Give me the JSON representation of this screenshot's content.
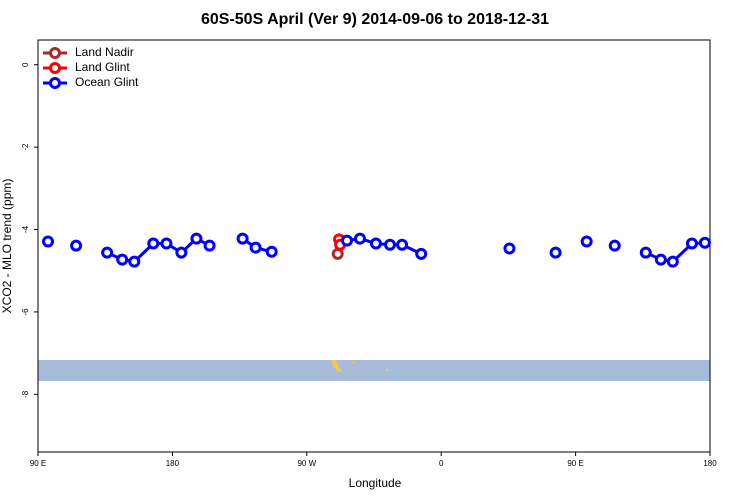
{
  "chart_data": {
    "type": "line",
    "title": "60S-50S April (Ver 9)   2014-09-06 to 2018-12-31",
    "x_label": "Longitude",
    "y_label": "XCO2 - MLO trend (ppm)",
    "xlim": [
      90,
      540
    ],
    "xticks": [
      {
        "value": 90,
        "label": "90 E"
      },
      {
        "value": 180,
        "label": "180"
      },
      {
        "value": 270,
        "label": "90 W"
      },
      {
        "value": 360,
        "label": "0"
      },
      {
        "value": 450,
        "label": "90 E"
      },
      {
        "value": 540,
        "label": "180"
      }
    ],
    "ylim": [
      -9.4,
      0.6
    ],
    "yticks": [
      0,
      -2,
      -4,
      -6,
      -8
    ],
    "legend": "top-left",
    "series": [
      {
        "name": "Land Nadir",
        "color": "#a52a2a",
        "x": [
          290.7
        ],
        "values": [
          -4.59
        ]
      },
      {
        "name": "Land Glint",
        "color": "#ff0000",
        "x": [
          291.6,
          292.3
        ],
        "values": [
          -4.24,
          -4.37
        ]
      },
      {
        "name": "Ocean Glint",
        "color": "#0000ff",
        "x": [
          96.7,
          106,
          115.5,
          126,
          136.3,
          146.4,
          154.5,
          167.2,
          176,
          186,
          196.1,
          204.9,
          216,
          227,
          235.7,
          246.5,
          272,
          296.9,
          305.6,
          316.3,
          325.7,
          333.8,
          346.6,
          376,
          405.7,
          421,
          436.6,
          447,
          457.4,
          467,
          476.2,
          487,
          497,
          507.1,
          515.1,
          527.9,
          536.6
        ],
        "values": [
          -4.29,
          null,
          -4.39,
          null,
          -4.56,
          -4.73,
          -4.78,
          -4.34,
          -4.34,
          -4.56,
          -4.22,
          -4.39,
          null,
          -4.22,
          -4.44,
          -4.54,
          null,
          -4.27,
          -4.22,
          -4.34,
          -4.37,
          -4.37,
          -4.59,
          null,
          -4.46,
          null,
          -4.56,
          null,
          -4.29,
          null,
          -4.39,
          null,
          -4.56,
          -4.73,
          -4.78,
          -4.34,
          -4.32
        ]
      }
    ]
  }
}
